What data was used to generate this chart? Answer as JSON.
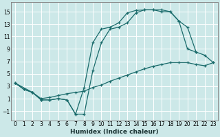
{
  "xlabel": "Humidex (Indice chaleur)",
  "bg_color": "#cce8e8",
  "grid_color": "#ffffff",
  "line_color": "#1a6b6b",
  "xlim": [
    -0.5,
    23.5
  ],
  "ylim": [
    -2.5,
    16.5
  ],
  "xticks": [
    0,
    1,
    2,
    3,
    4,
    5,
    6,
    7,
    8,
    9,
    10,
    11,
    12,
    13,
    14,
    15,
    16,
    17,
    18,
    19,
    20,
    21,
    22,
    23
  ],
  "yticks": [
    -1,
    1,
    3,
    5,
    7,
    9,
    11,
    13,
    15
  ],
  "curve1_x": [
    0,
    1,
    2,
    3,
    4,
    5,
    6,
    7,
    8,
    9,
    10,
    11,
    12,
    13,
    14,
    15,
    16,
    17,
    18,
    19,
    20,
    21
  ],
  "curve1_y": [
    3.5,
    2.5,
    2.0,
    0.8,
    0.8,
    1.0,
    0.8,
    -1.5,
    2.8,
    10.0,
    12.2,
    12.5,
    13.2,
    14.8,
    15.2,
    15.3,
    15.3,
    15.0,
    15.0,
    13.5,
    9.0,
    8.5
  ],
  "curve2_x": [
    0,
    1,
    2,
    3,
    4,
    5,
    6,
    7,
    8,
    9,
    10,
    11,
    12,
    13,
    14,
    15,
    16,
    17,
    18,
    19,
    20,
    21,
    22,
    23
  ],
  "curve2_y": [
    3.5,
    2.5,
    2.0,
    0.8,
    0.8,
    1.0,
    0.8,
    -1.5,
    -1.5,
    5.5,
    10.0,
    12.2,
    12.5,
    13.2,
    14.8,
    15.3,
    15.3,
    15.3,
    15.0,
    13.5,
    12.5,
    8.5,
    8.0,
    6.8
  ],
  "curve3_x": [
    0,
    2,
    3,
    4,
    5,
    6,
    7,
    8,
    9,
    10,
    11,
    12,
    13,
    14,
    15,
    16,
    17,
    18,
    19,
    20,
    21,
    22,
    23
  ],
  "curve3_y": [
    3.5,
    2.0,
    1.0,
    1.2,
    1.5,
    1.8,
    2.0,
    2.2,
    2.8,
    3.2,
    3.8,
    4.3,
    4.8,
    5.3,
    5.8,
    6.2,
    6.5,
    6.8,
    6.8,
    6.8,
    6.5,
    6.3,
    6.8
  ]
}
